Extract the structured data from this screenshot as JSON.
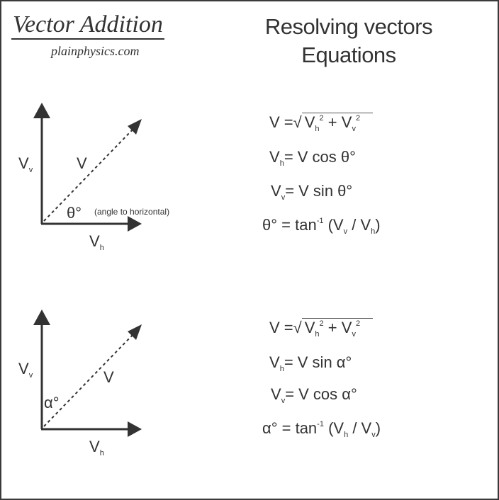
{
  "header": {
    "title": "Vector Addition",
    "site": "plainphysics.com",
    "right_title_line1": "Resolving vectors",
    "right_title_line2": "Equations"
  },
  "diagram1": {
    "vv": "V",
    "vv_sub": "v",
    "v": "V",
    "angle": "θ°",
    "angle_note": "(angle to horizontal)",
    "vh": "V",
    "vh_sub": "h"
  },
  "diagram2": {
    "vv": "V",
    "vv_sub": "v",
    "v": "V",
    "angle": "α°",
    "vh": "V",
    "vh_sub": "h"
  },
  "equations1": {
    "eq1": {
      "lhs": "V =",
      "root": "√",
      "a": "V",
      "a_sub": "h",
      "a_sup": "2",
      "plus": "+",
      "b": "V",
      "b_sub": "v",
      "b_sup": "2"
    },
    "eq2": {
      "lhs": "V",
      "lhs_sub": "h",
      "rhs": "= V cos θ°"
    },
    "eq3": {
      "lhs": "V",
      "lhs_sub": "v",
      "rhs": "= V sin θ°"
    },
    "eq4": {
      "lhs": "θ° = tan",
      "sup": "-1",
      "open": " (V",
      "s1": "v",
      "mid": " / V",
      "s2": "h",
      "close": ")"
    }
  },
  "equations2": {
    "eq1": {
      "lhs": "V =",
      "root": "√",
      "a": "V",
      "a_sub": "h",
      "a_sup": "2",
      "plus": "+",
      "b": "V",
      "b_sub": "v",
      "b_sup": "2"
    },
    "eq2": {
      "lhs": "V",
      "lhs_sub": "h",
      "rhs": "= V sin α°"
    },
    "eq3": {
      "lhs": "V",
      "lhs_sub": "v",
      "rhs": "= V cos α°"
    },
    "eq4": {
      "lhs": "α° = tan",
      "sup": "-1",
      "open": " (V",
      "s1": "h",
      "mid": " / V",
      "s2": "v",
      "close": ")"
    }
  }
}
